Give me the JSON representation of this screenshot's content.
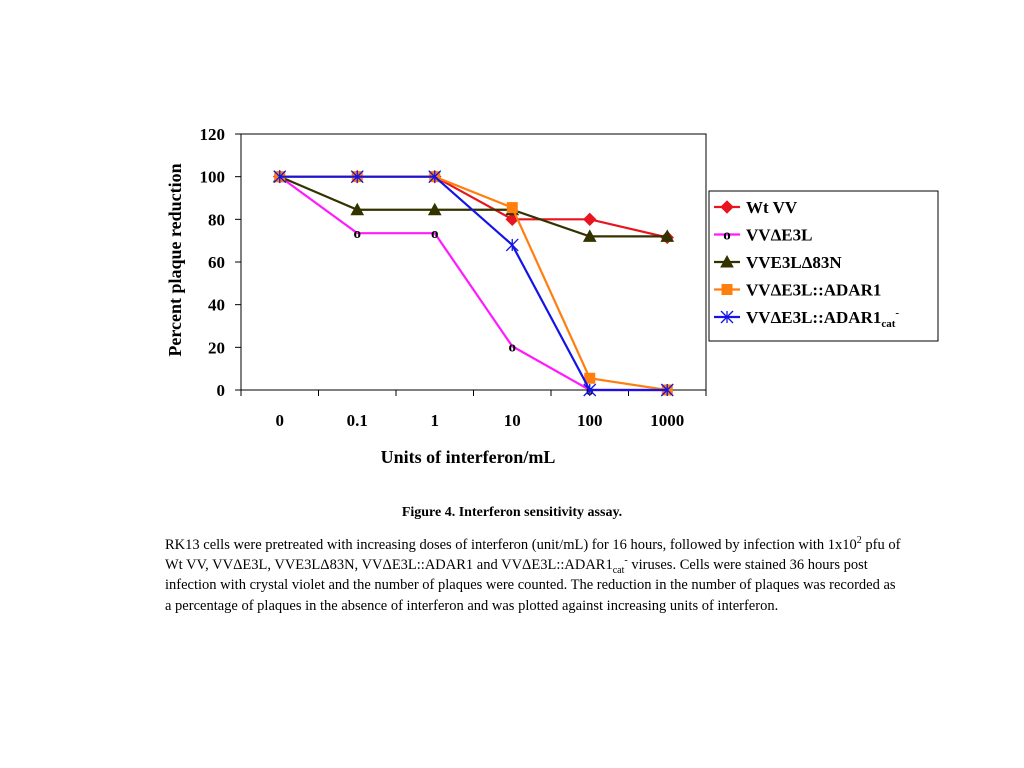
{
  "chart_data": {
    "type": "line",
    "title": "",
    "xlabel": "Units of interferon/mL",
    "ylabel": "Percent plaque reduction",
    "categories": [
      "0",
      "0.1",
      "1",
      "10",
      "100",
      "1000"
    ],
    "yticks": [
      "0",
      "20",
      "40",
      "60",
      "80",
      "100",
      "120"
    ],
    "ylim": [
      0,
      120
    ],
    "legend_position": "right",
    "grid": false,
    "series": [
      {
        "name": "Wt VV",
        "color": "#e8141e",
        "marker": "diamond",
        "values": [
          100,
          100,
          100,
          80,
          80,
          71.5
        ]
      },
      {
        "name": "VVΔE3L",
        "color": "#ff1aff",
        "marker": "circle-o",
        "values": [
          100,
          73.5,
          73.5,
          20.5,
          0,
          0
        ]
      },
      {
        "name": "VVE3LΔ83N",
        "color": "#333300",
        "marker": "triangle",
        "values": [
          100,
          84.5,
          84.5,
          84.5,
          72,
          72
        ]
      },
      {
        "name": "VVΔE3L::ADAR1",
        "color": "#ff7f0e",
        "marker": "square",
        "values": [
          100,
          100,
          100,
          85.5,
          5.5,
          0
        ]
      },
      {
        "name": "VVΔE3L::ADAR1cat-",
        "color": "#1414e6",
        "marker": "asterisk",
        "values": [
          100,
          100,
          100,
          68,
          0,
          0
        ]
      }
    ]
  },
  "legend": [
    {
      "parts": [
        "Wt VV"
      ]
    },
    {
      "parts": [
        "VV",
        "Δ",
        "E3L"
      ]
    },
    {
      "parts": [
        "VVE3L",
        "Δ",
        "83N"
      ]
    },
    {
      "parts": [
        "VV",
        "Δ",
        "E3L::ADAR1"
      ]
    },
    {
      "parts": [
        "VV",
        "Δ",
        "E3L::ADAR1",
        "cat",
        "-"
      ]
    }
  ],
  "caption": {
    "title": "Figure 4. Interferon sensitivity assay.",
    "p1": "RK13 cells were pretreated with increasing doses of interferon (unit/mL) for 16 hours, followed by infection with 1x10",
    "sup1": "2",
    "p2": " pfu of Wt VV, VVΔE3L, VVE3LΔ83N, VVΔE3L::ADAR1 and VVΔE3L::ADAR1",
    "sub1": "cat",
    "sup2": "-",
    "p3": " viruses.  Cells were stained 36 hours post infection with crystal violet and the number of plaques were counted.  The reduction in the number of plaques was recorded as a percentage of plaques in the absence of interferon and was plotted against increasing units of interferon."
  }
}
